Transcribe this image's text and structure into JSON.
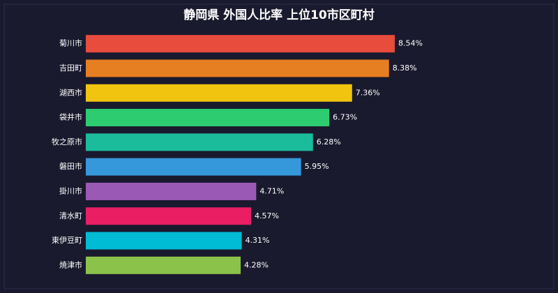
{
  "chart_data": {
    "type": "hbar",
    "title": "静岡県 外国人比率 上位10市区町村",
    "categories": [
      "菊川市",
      "吉田町",
      "湖西市",
      "袋井市",
      "牧之原市",
      "磐田市",
      "掛川市",
      "清水町",
      "東伊豆町",
      "焼津市"
    ],
    "values": [
      8.54,
      8.38,
      7.36,
      6.73,
      6.28,
      5.95,
      4.71,
      4.57,
      4.31,
      4.28
    ],
    "value_labels": [
      "8.54%",
      "8.38%",
      "7.36%",
      "6.73%",
      "6.28%",
      "5.95%",
      "4.71%",
      "4.57%",
      "4.31%",
      "4.28%"
    ],
    "colors": [
      "#e74c3c",
      "#e67e22",
      "#f1c40f",
      "#2ecc71",
      "#1abc9c",
      "#3498db",
      "#9b59b6",
      "#e91e63",
      "#00bcd4",
      "#8bc34a"
    ]
  }
}
